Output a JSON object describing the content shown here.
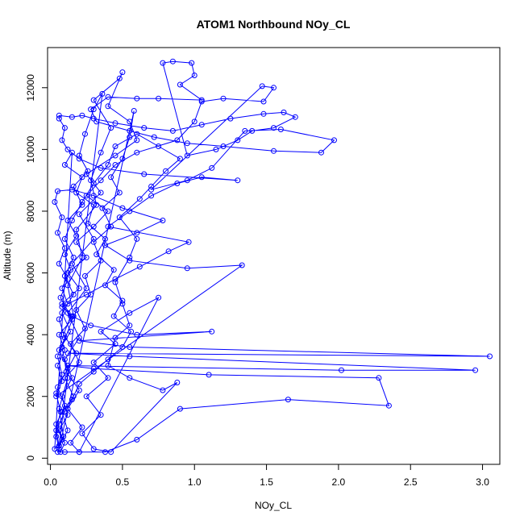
{
  "chart_data": {
    "type": "line",
    "title": "ATOM1 Northbound NOy_CL",
    "xlabel": "NOy_CL",
    "ylabel": "Altitude (m)",
    "xlim": [
      -0.02,
      3.12
    ],
    "ylim": [
      -200,
      13300
    ],
    "x_ticks": [
      0.0,
      0.5,
      1.0,
      1.5,
      2.0,
      2.5,
      3.0
    ],
    "x_tick_labels": [
      "0.0",
      "0.5",
      "1.0",
      "1.5",
      "2.0",
      "2.5",
      "3.0"
    ],
    "y_ticks": [
      0,
      2000,
      4000,
      6000,
      8000,
      10000,
      12000
    ],
    "y_tick_labels": [
      "0",
      "2000",
      "4000",
      "6000",
      "8000",
      "10000",
      "12000"
    ],
    "marker": "open-circle",
    "grid": false,
    "series": [
      {
        "color": "#0000ff",
        "points": [
          [
            0.07,
            200
          ],
          [
            0.1,
            500
          ],
          [
            0.06,
            900
          ],
          [
            0.12,
            1400
          ],
          [
            0.08,
            2000
          ],
          [
            0.15,
            2600
          ],
          [
            0.1,
            3200
          ],
          [
            0.2,
            3900
          ],
          [
            0.12,
            4700
          ],
          [
            0.25,
            5500
          ],
          [
            0.15,
            6300
          ],
          [
            0.3,
            7100
          ],
          [
            0.2,
            7900
          ],
          [
            0.35,
            8600
          ],
          [
            0.25,
            9200
          ],
          [
            0.45,
            9800
          ],
          [
            0.6,
            10300
          ],
          [
            0.55,
            10900
          ],
          [
            0.4,
            11400
          ],
          [
            0.5,
            12500
          ],
          [
            0.48,
            12300
          ],
          [
            0.3,
            11600
          ],
          [
            0.42,
            10700
          ],
          [
            0.35,
            9900
          ],
          [
            0.28,
            9000
          ],
          [
            0.32,
            8200
          ],
          [
            0.18,
            7400
          ],
          [
            0.22,
            6500
          ],
          [
            0.12,
            5600
          ],
          [
            0.16,
            4600
          ],
          [
            0.08,
            3600
          ],
          [
            0.12,
            2600
          ],
          [
            0.06,
            1600
          ],
          [
            0.09,
            700
          ],
          [
            0.05,
            200
          ],
          [
            0.1,
            200
          ],
          [
            0.2,
            200
          ],
          [
            0.38,
            200
          ],
          [
            0.6,
            600
          ],
          [
            0.9,
            1600
          ],
          [
            1.65,
            1900
          ],
          [
            2.35,
            1700
          ],
          [
            2.28,
            2600
          ],
          [
            1.1,
            2700
          ],
          [
            0.3,
            2900
          ],
          [
            0.12,
            3000
          ],
          [
            2.02,
            2850
          ],
          [
            2.95,
            2850
          ],
          [
            0.55,
            3300
          ],
          [
            0.12,
            3400
          ],
          [
            3.05,
            3300
          ],
          [
            0.55,
            3600
          ],
          [
            0.2,
            3800
          ],
          [
            1.12,
            4100
          ],
          [
            0.6,
            4000
          ],
          [
            0.28,
            4300
          ],
          [
            0.15,
            4600
          ],
          [
            0.08,
            4900
          ],
          [
            0.25,
            5300
          ],
          [
            0.45,
            5800
          ],
          [
            0.62,
            6200
          ],
          [
            0.82,
            6700
          ],
          [
            0.96,
            7000
          ],
          [
            0.4,
            7500
          ],
          [
            0.55,
            8000
          ],
          [
            0.7,
            8500
          ],
          [
            0.88,
            8900
          ],
          [
            1.05,
            9100
          ],
          [
            1.3,
            9000
          ],
          [
            0.65,
            9200
          ],
          [
            0.35,
            9400
          ],
          [
            0.2,
            9700
          ],
          [
            0.12,
            10000
          ],
          [
            0.08,
            10300
          ],
          [
            0.1,
            10700
          ],
          [
            0.06,
            11000
          ],
          [
            0.06,
            11100
          ],
          [
            0.15,
            11050
          ],
          [
            0.22,
            11100
          ],
          [
            0.3,
            11000
          ],
          [
            0.45,
            10850
          ],
          [
            0.65,
            10700
          ],
          [
            0.85,
            10600
          ],
          [
            1.05,
            10800
          ],
          [
            1.25,
            11000
          ],
          [
            1.48,
            11150
          ],
          [
            1.62,
            11200
          ],
          [
            1.7,
            11050
          ],
          [
            1.55,
            10700
          ],
          [
            1.4,
            10600
          ],
          [
            1.3,
            10300
          ],
          [
            1.15,
            10000
          ],
          [
            0.95,
            9800
          ],
          [
            0.78,
            12800
          ],
          [
            0.85,
            12850
          ],
          [
            0.98,
            12800
          ],
          [
            1.0,
            12400
          ],
          [
            0.9,
            12100
          ],
          [
            1.05,
            11600
          ],
          [
            0.75,
            11650
          ],
          [
            0.6,
            11650
          ],
          [
            0.4,
            11700
          ],
          [
            0.28,
            11300
          ],
          [
            0.32,
            10900
          ],
          [
            0.55,
            10600
          ],
          [
            0.72,
            10400
          ],
          [
            0.95,
            10200
          ],
          [
            1.2,
            10100
          ],
          [
            1.55,
            9950
          ],
          [
            1.88,
            9900
          ],
          [
            1.97,
            10300
          ],
          [
            1.6,
            10650
          ],
          [
            1.35,
            10600
          ],
          [
            1.12,
            9400
          ],
          [
            0.95,
            9000
          ],
          [
            0.7,
            8700
          ],
          [
            1.47,
            12050
          ],
          [
            1.55,
            12000
          ],
          [
            1.48,
            11550
          ],
          [
            1.2,
            11650
          ],
          [
            1.05,
            11550
          ],
          [
            1.0,
            10900
          ],
          [
            0.88,
            10300
          ],
          [
            0.6,
            9900
          ],
          [
            0.45,
            9500
          ],
          [
            0.35,
            9000
          ],
          [
            0.25,
            8500
          ],
          [
            0.4,
            8000
          ],
          [
            0.3,
            7500
          ],
          [
            0.18,
            7000
          ],
          [
            0.25,
            6500
          ],
          [
            0.12,
            6000
          ],
          [
            0.2,
            5500
          ],
          [
            0.08,
            5000
          ],
          [
            0.15,
            4500
          ],
          [
            0.06,
            4000
          ],
          [
            0.1,
            3500
          ],
          [
            0.05,
            3000
          ],
          [
            0.08,
            2500
          ],
          [
            0.04,
            2000
          ],
          [
            1.33,
            6250
          ],
          [
            0.95,
            6150
          ],
          [
            0.55,
            6400
          ],
          [
            0.38,
            6900
          ],
          [
            0.6,
            7300
          ],
          [
            0.78,
            7700
          ],
          [
            0.5,
            8100
          ],
          [
            0.3,
            8500
          ],
          [
            0.15,
            8700
          ],
          [
            0.05,
            8650
          ],
          [
            0.03,
            8300
          ],
          [
            0.08,
            7800
          ],
          [
            0.05,
            7300
          ],
          [
            0.1,
            6800
          ],
          [
            0.06,
            6300
          ],
          [
            0.12,
            5800
          ],
          [
            0.07,
            5200
          ],
          [
            0.14,
            4600
          ],
          [
            0.09,
            4000
          ],
          [
            0.18,
            3400
          ],
          [
            0.11,
            2800
          ],
          [
            0.2,
            2200
          ],
          [
            0.12,
            1600
          ],
          [
            0.22,
            1000
          ],
          [
            0.14,
            500
          ],
          [
            0.2,
            200
          ],
          [
            0.75,
            5200
          ],
          [
            0.55,
            4700
          ],
          [
            0.35,
            4100
          ],
          [
            0.45,
            3700
          ],
          [
            0.3,
            3100
          ],
          [
            0.4,
            2600
          ],
          [
            0.25,
            2000
          ],
          [
            0.35,
            1400
          ],
          [
            0.22,
            800
          ],
          [
            0.3,
            300
          ],
          [
            0.42,
            200
          ],
          [
            0.88,
            2450
          ],
          [
            0.78,
            2200
          ],
          [
            0.55,
            2600
          ],
          [
            0.4,
            3000
          ],
          [
            0.45,
            3900
          ],
          [
            0.55,
            4300
          ],
          [
            0.5,
            5000
          ],
          [
            0.45,
            5700
          ],
          [
            0.55,
            6500
          ],
          [
            0.6,
            7100
          ],
          [
            0.48,
            7800
          ],
          [
            0.62,
            8400
          ],
          [
            0.7,
            8800
          ],
          [
            0.8,
            9300
          ],
          [
            0.9,
            9700
          ],
          [
            0.75,
            10100
          ],
          [
            0.6,
            10500
          ],
          [
            0.45,
            10100
          ],
          [
            0.4,
            9500
          ],
          [
            0.3,
            8900
          ],
          [
            0.22,
            8300
          ],
          [
            0.15,
            7700
          ],
          [
            0.1,
            7100
          ],
          [
            0.16,
            6500
          ],
          [
            0.1,
            5900
          ],
          [
            0.16,
            5300
          ],
          [
            0.08,
            4700
          ],
          [
            0.14,
            4100
          ],
          [
            0.06,
            3500
          ],
          [
            0.12,
            2900
          ],
          [
            0.05,
            2300
          ],
          [
            0.1,
            1700
          ],
          [
            0.04,
            1100
          ],
          [
            0.08,
            600
          ],
          [
            0.03,
            300
          ],
          [
            0.15,
            9900
          ],
          [
            0.1,
            9500
          ],
          [
            0.22,
            9100
          ],
          [
            0.18,
            8600
          ],
          [
            0.3,
            8200
          ],
          [
            0.26,
            7600
          ],
          [
            0.38,
            7100
          ],
          [
            0.32,
            6600
          ],
          [
            0.44,
            6100
          ],
          [
            0.38,
            5600
          ],
          [
            0.5,
            5100
          ],
          [
            0.44,
            4600
          ],
          [
            0.56,
            4100
          ],
          [
            0.5,
            3600
          ],
          [
            0.4,
            3200
          ],
          [
            0.3,
            2800
          ],
          [
            0.2,
            2400
          ],
          [
            0.15,
            1900
          ],
          [
            0.1,
            1500
          ],
          [
            0.06,
            1100
          ],
          [
            0.04,
            700
          ],
          [
            0.06,
            300
          ],
          [
            0.58,
            11250
          ],
          [
            0.55,
            10400
          ],
          [
            0.5,
            9700
          ],
          [
            0.42,
            9100
          ],
          [
            0.48,
            8600
          ],
          [
            0.36,
            8100
          ],
          [
            0.42,
            7500
          ],
          [
            0.3,
            7000
          ],
          [
            0.35,
            6400
          ],
          [
            0.24,
            5900
          ],
          [
            0.28,
            5300
          ],
          [
            0.18,
            4800
          ],
          [
            0.24,
            4200
          ],
          [
            0.14,
            3700
          ],
          [
            0.2,
            3100
          ],
          [
            0.1,
            2600
          ],
          [
            0.16,
            2000
          ],
          [
            0.08,
            1500
          ],
          [
            0.12,
            900
          ],
          [
            0.06,
            400
          ],
          [
            0.36,
            11800
          ],
          [
            0.3,
            11300
          ],
          [
            0.24,
            10500
          ],
          [
            0.2,
            9800
          ],
          [
            0.26,
            9300
          ],
          [
            0.16,
            8800
          ],
          [
            0.22,
            8200
          ],
          [
            0.12,
            7700
          ],
          [
            0.18,
            7200
          ],
          [
            0.1,
            6600
          ],
          [
            0.14,
            6100
          ],
          [
            0.08,
            5500
          ],
          [
            0.12,
            5000
          ],
          [
            0.06,
            4500
          ],
          [
            0.1,
            3900
          ],
          [
            0.05,
            3300
          ],
          [
            0.08,
            2700
          ],
          [
            0.04,
            2100
          ],
          [
            0.07,
            1500
          ],
          [
            0.04,
            900
          ],
          [
            0.06,
            400
          ]
        ]
      }
    ]
  }
}
